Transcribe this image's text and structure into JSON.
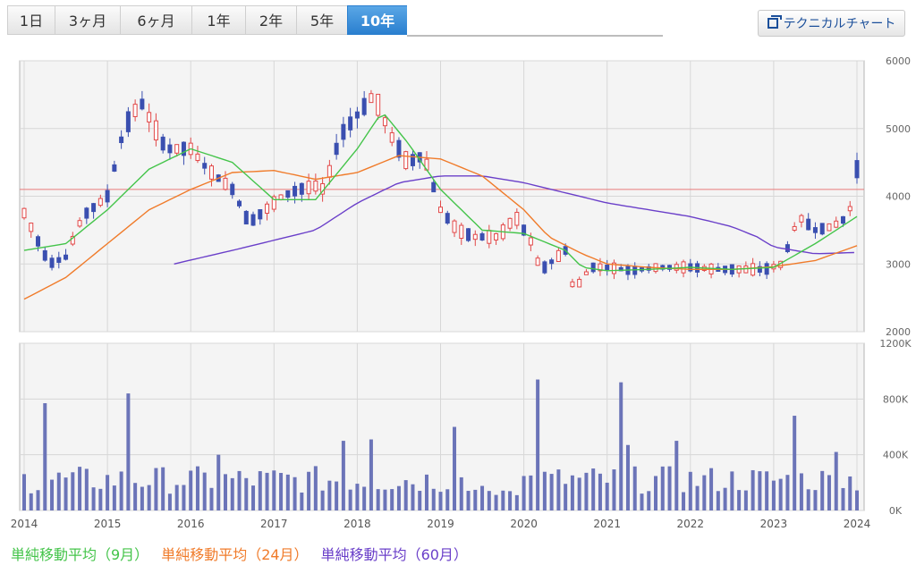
{
  "tabs": [
    "1日",
    "3ヶ月",
    "6ヶ月",
    "1年",
    "2年",
    "5年",
    "10年"
  ],
  "active_tab": "10年",
  "technical_button": "テクニカルチャート",
  "legend": [
    {
      "label": "単純移動平均（9月）",
      "color": "#44c44a"
    },
    {
      "label": "単純移動平均（24月）",
      "color": "#f07b2a"
    },
    {
      "label": "単純移動平均（60月）",
      "color": "#6a3fc9"
    }
  ],
  "chart_data": {
    "type": "candlestick",
    "x_ticks": [
      "2014",
      "2015",
      "2016",
      "2017",
      "2018",
      "2019",
      "2020",
      "2021",
      "2022",
      "2023",
      "2024"
    ],
    "price_axis": {
      "ylim": [
        2000,
        6000
      ],
      "ticks": [
        "2000",
        "3000",
        "4000",
        "5000",
        "6000"
      ]
    },
    "volume_axis": {
      "ylim": [
        0,
        1200000
      ],
      "ticks": [
        "0K",
        "400K",
        "800K",
        "1200K"
      ]
    },
    "reference_line": 4100,
    "price_anchors": [
      [
        2014.0,
        3750
      ],
      [
        2014.3,
        3000
      ],
      [
        2014.5,
        3100
      ],
      [
        2014.7,
        3700
      ],
      [
        2015.0,
        4000
      ],
      [
        2015.2,
        5000
      ],
      [
        2015.4,
        5400
      ],
      [
        2015.7,
        4700
      ],
      [
        2016.0,
        4700
      ],
      [
        2016.2,
        4400
      ],
      [
        2016.5,
        4100
      ],
      [
        2016.7,
        3600
      ],
      [
        2016.9,
        3800
      ],
      [
        2017.1,
        4000
      ],
      [
        2017.3,
        4100
      ],
      [
        2017.5,
        4150
      ],
      [
        2017.6,
        4100
      ],
      [
        2017.8,
        4900
      ],
      [
        2018.0,
        5200
      ],
      [
        2018.2,
        5500
      ],
      [
        2018.4,
        4900
      ],
      [
        2018.6,
        4500
      ],
      [
        2018.8,
        4600
      ],
      [
        2019.0,
        3800
      ],
      [
        2019.2,
        3500
      ],
      [
        2019.4,
        3400
      ],
      [
        2019.7,
        3400
      ],
      [
        2019.9,
        3700
      ],
      [
        2020.1,
        3300
      ],
      [
        2020.2,
        2900
      ],
      [
        2020.4,
        3100
      ],
      [
        2020.5,
        3200
      ],
      [
        2020.6,
        2600
      ],
      [
        2020.8,
        2950
      ],
      [
        2021.0,
        2950
      ],
      [
        2021.3,
        2900
      ],
      [
        2021.6,
        2950
      ],
      [
        2021.8,
        2950
      ],
      [
        2022.0,
        2950
      ],
      [
        2022.3,
        2920
      ],
      [
        2022.6,
        2920
      ],
      [
        2022.9,
        2920
      ],
      [
        2023.1,
        3000
      ],
      [
        2023.3,
        3700
      ],
      [
        2023.5,
        3500
      ],
      [
        2023.7,
        3550
      ],
      [
        2023.9,
        3700
      ],
      [
        2024.0,
        4400
      ]
    ],
    "ma9_anchors": [
      [
        2014.0,
        3200
      ],
      [
        2014.5,
        3300
      ],
      [
        2015.0,
        3800
      ],
      [
        2015.5,
        4400
      ],
      [
        2016.0,
        4700
      ],
      [
        2016.5,
        4500
      ],
      [
        2017.0,
        3950
      ],
      [
        2017.5,
        3950
      ],
      [
        2018.0,
        4700
      ],
      [
        2018.3,
        5250
      ],
      [
        2018.6,
        4800
      ],
      [
        2019.0,
        4100
      ],
      [
        2019.5,
        3500
      ],
      [
        2020.0,
        3450
      ],
      [
        2020.5,
        3200
      ],
      [
        2020.7,
        2950
      ],
      [
        2021.0,
        2900
      ],
      [
        2021.5,
        2920
      ],
      [
        2022.0,
        2950
      ],
      [
        2022.5,
        2920
      ],
      [
        2023.0,
        2950
      ],
      [
        2023.5,
        3300
      ],
      [
        2024.0,
        3700
      ]
    ],
    "ma24_anchors": [
      [
        2014.0,
        2480
      ],
      [
        2014.5,
        2800
      ],
      [
        2015.0,
        3300
      ],
      [
        2015.5,
        3800
      ],
      [
        2016.0,
        4100
      ],
      [
        2016.5,
        4350
      ],
      [
        2017.0,
        4380
      ],
      [
        2017.5,
        4250
      ],
      [
        2018.0,
        4350
      ],
      [
        2018.5,
        4600
      ],
      [
        2019.0,
        4550
      ],
      [
        2019.5,
        4300
      ],
      [
        2020.0,
        3800
      ],
      [
        2020.3,
        3400
      ],
      [
        2020.7,
        3150
      ],
      [
        2021.0,
        3000
      ],
      [
        2021.5,
        2950
      ],
      [
        2022.0,
        2920
      ],
      [
        2022.5,
        2920
      ],
      [
        2023.0,
        2960
      ],
      [
        2023.5,
        3050
      ],
      [
        2024.0,
        3270
      ]
    ],
    "ma60_anchors": [
      [
        2015.8,
        3000
      ],
      [
        2016.5,
        3200
      ],
      [
        2017.5,
        3500
      ],
      [
        2018.0,
        3900
      ],
      [
        2018.5,
        4200
      ],
      [
        2019.0,
        4300
      ],
      [
        2019.5,
        4300
      ],
      [
        2020.0,
        4200
      ],
      [
        2020.5,
        4050
      ],
      [
        2021.0,
        3900
      ],
      [
        2021.5,
        3800
      ],
      [
        2022.0,
        3700
      ],
      [
        2022.5,
        3550
      ],
      [
        2022.8,
        3400
      ],
      [
        2023.0,
        3250
      ],
      [
        2023.5,
        3150
      ],
      [
        2024.0,
        3170
      ]
    ],
    "volume_spikes": [
      [
        2014.25,
        770000
      ],
      [
        2015.25,
        840000
      ],
      [
        2016.3,
        400000
      ],
      [
        2017.85,
        500000
      ],
      [
        2018.15,
        510000
      ],
      [
        2019.15,
        600000
      ],
      [
        2020.15,
        940000
      ],
      [
        2021.15,
        920000
      ],
      [
        2021.25,
        470000
      ],
      [
        2021.85,
        500000
      ],
      [
        2023.25,
        680000
      ],
      [
        2023.75,
        420000
      ]
    ]
  }
}
